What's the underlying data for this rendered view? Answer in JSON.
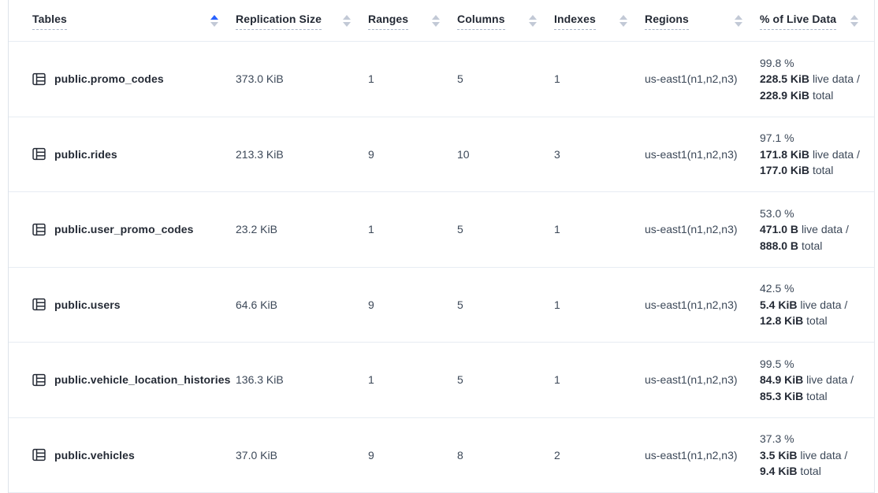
{
  "colors": {
    "sort_active_arrow": "#2962ff",
    "sort_inactive_arrow": "#c2c9d6",
    "header_text": "#242a35",
    "body_text": "#3c4858",
    "row_divider": "#e7ecf3"
  },
  "table": {
    "columns": [
      {
        "label": "Tables",
        "sort": "asc"
      },
      {
        "label": "Replication Size",
        "sort": "none"
      },
      {
        "label": "Ranges",
        "sort": "none"
      },
      {
        "label": "Columns",
        "sort": "none"
      },
      {
        "label": "Indexes",
        "sort": "none"
      },
      {
        "label": "Regions",
        "sort": "none"
      },
      {
        "label": "% of Live Data",
        "sort": "none"
      }
    ],
    "rows": [
      {
        "icon": "table-icon",
        "name": "public.promo_codes",
        "replication_size": "373.0 KiB",
        "ranges": "1",
        "columns": "5",
        "indexes": "1",
        "regions": "us-east1(n1,n2,n3)",
        "live_pct": "99.8 %",
        "live_value": "228.5 KiB",
        "live_label": "live data /",
        "total_value": "228.9 KiB",
        "total_label": "total"
      },
      {
        "icon": "table-icon",
        "name": "public.rides",
        "replication_size": "213.3 KiB",
        "ranges": "9",
        "columns": "10",
        "indexes": "3",
        "regions": "us-east1(n1,n2,n3)",
        "live_pct": "97.1 %",
        "live_value": "171.8 KiB",
        "live_label": "live data /",
        "total_value": "177.0 KiB",
        "total_label": "total"
      },
      {
        "icon": "table-icon",
        "name": "public.user_promo_codes",
        "replication_size": "23.2 KiB",
        "ranges": "1",
        "columns": "5",
        "indexes": "1",
        "regions": "us-east1(n1,n2,n3)",
        "live_pct": "53.0 %",
        "live_value": "471.0 B",
        "live_label": "live data /",
        "total_value": "888.0 B",
        "total_label": "total"
      },
      {
        "icon": "table-icon",
        "name": "public.users",
        "replication_size": "64.6 KiB",
        "ranges": "9",
        "columns": "5",
        "indexes": "1",
        "regions": "us-east1(n1,n2,n3)",
        "live_pct": "42.5 %",
        "live_value": "5.4 KiB",
        "live_label": "live data /",
        "total_value": "12.8 KiB",
        "total_label": "total"
      },
      {
        "icon": "table-icon",
        "name": "public.vehicle_location_histories",
        "replication_size": "136.3 KiB",
        "ranges": "1",
        "columns": "5",
        "indexes": "1",
        "regions": "us-east1(n1,n2,n3)",
        "live_pct": "99.5 %",
        "live_value": "84.9 KiB",
        "live_label": "live data /",
        "total_value": "85.3 KiB",
        "total_label": "total"
      },
      {
        "icon": "table-icon",
        "name": "public.vehicles",
        "replication_size": "37.0 KiB",
        "ranges": "9",
        "columns": "8",
        "indexes": "2",
        "regions": "us-east1(n1,n2,n3)",
        "live_pct": "37.3 %",
        "live_value": "3.5 KiB",
        "live_label": "live data /",
        "total_value": "9.4 KiB",
        "total_label": "total"
      }
    ]
  }
}
